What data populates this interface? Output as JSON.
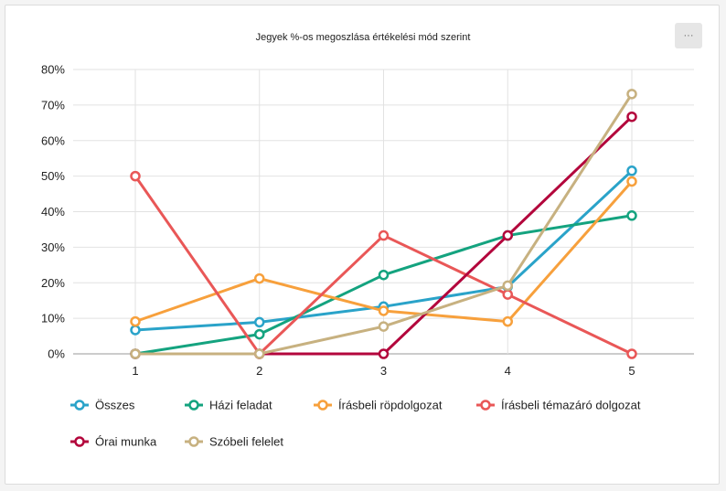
{
  "menu": {
    "label": "···"
  },
  "colors": {
    "grid": "#e2e2e2",
    "axis": "#999999"
  },
  "chart_data": {
    "type": "line",
    "title": "Jegyek %-os megoszlása értékelési mód szerint",
    "x": [
      "1",
      "2",
      "3",
      "4",
      "5"
    ],
    "xlabel": "",
    "ylabel": "",
    "ylim": [
      0,
      80
    ],
    "yticks": [
      0,
      10,
      20,
      30,
      40,
      50,
      60,
      70,
      80
    ],
    "ytick_suffix": "%",
    "grid": true,
    "legend_position": "bottom",
    "series": [
      {
        "name": "Összes",
        "color": "#2aa3c9",
        "values": [
          6.7,
          8.9,
          13.3,
          18.9,
          51.5
        ]
      },
      {
        "name": "Házi feladat",
        "color": "#14a37f",
        "values": [
          0,
          5.5,
          22.2,
          33.3,
          38.9
        ]
      },
      {
        "name": "Írásbeli röpdolgozat",
        "color": "#f7a03c",
        "values": [
          9.1,
          21.2,
          12.1,
          9.1,
          48.5
        ]
      },
      {
        "name": "Írásbeli témazáró dolgozat",
        "color": "#e95757",
        "values": [
          50,
          0,
          33.3,
          16.7,
          0
        ]
      },
      {
        "name": "Órai munka",
        "color": "#b3063c",
        "values": [
          0,
          0,
          0,
          33.3,
          66.7
        ]
      },
      {
        "name": "Szóbeli felelet",
        "color": "#c7b180",
        "values": [
          0,
          0,
          7.7,
          19.2,
          73.1
        ]
      }
    ]
  }
}
